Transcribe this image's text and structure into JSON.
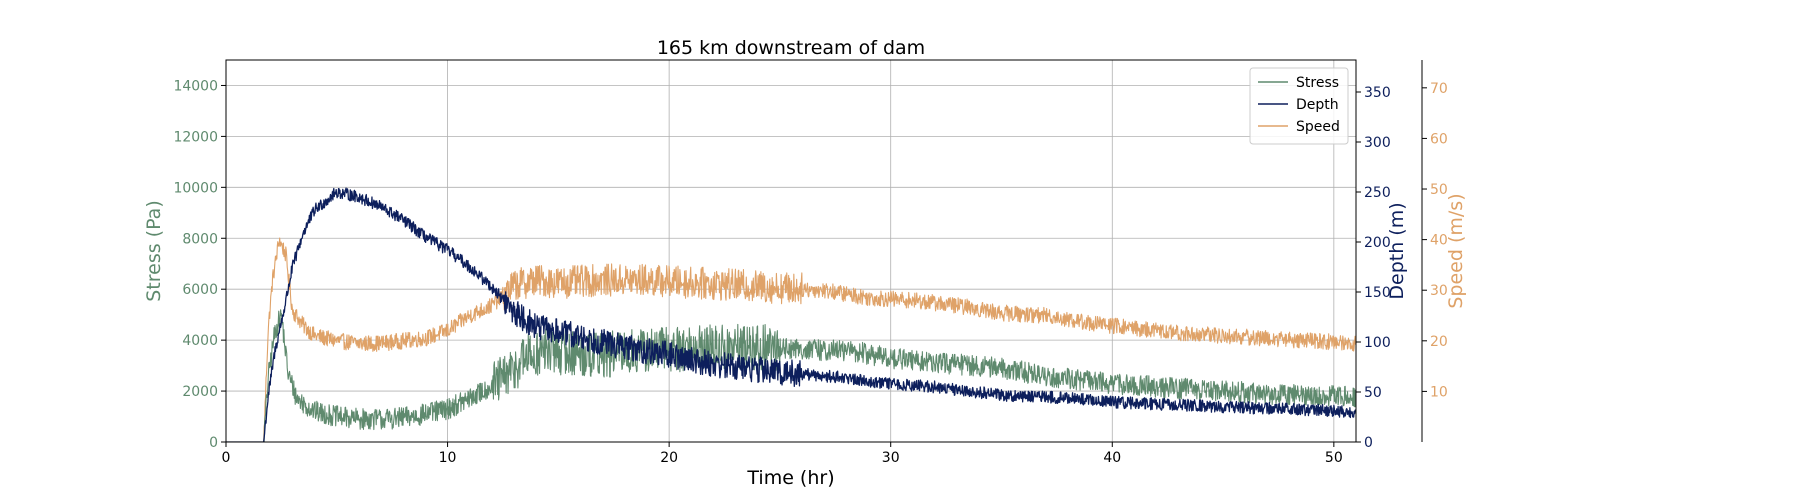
{
  "chart_data": {
    "type": "line",
    "title": "165 km downstream of dam",
    "xlabel": "Time (hr)",
    "xlim": [
      0,
      51
    ],
    "xticks": [
      0,
      10,
      20,
      30,
      40,
      50
    ],
    "grid": true,
    "legend_position": "top-right",
    "axes": [
      {
        "id": "stress",
        "label": "Stress (Pa)",
        "side": "left",
        "color": "#5f8a6e",
        "ylim": [
          0,
          15000
        ],
        "ticks": [
          0,
          2000,
          4000,
          6000,
          8000,
          10000,
          12000,
          14000
        ]
      },
      {
        "id": "depth",
        "label": "Depth (m)",
        "side": "right",
        "color": "#0d1f5c",
        "ylim": [
          0,
          382
        ],
        "ticks": [
          0,
          50,
          100,
          150,
          200,
          250,
          300,
          350
        ]
      },
      {
        "id": "speed",
        "label": "Speed (m/s)",
        "side": "right-offset",
        "color": "#dfa268",
        "ylim": [
          0,
          75.5
        ],
        "ticks": [
          10,
          20,
          30,
          40,
          50,
          60,
          70
        ]
      }
    ],
    "series": [
      {
        "name": "Stress",
        "axis": "stress",
        "color": "#5f8a6e",
        "x": [
          0,
          1.7,
          1.9,
          2.2,
          2.5,
          2.8,
          3.2,
          4,
          5,
          6,
          7,
          8,
          9,
          10,
          11,
          12,
          12.7,
          13.5,
          14.5,
          15.5,
          17,
          19,
          21,
          23,
          25,
          27,
          28,
          30,
          32,
          34,
          35,
          37,
          40,
          43,
          45,
          47,
          49,
          51
        ],
        "y": [
          0,
          0,
          2500,
          4300,
          5000,
          2700,
          1700,
          1200,
          1000,
          900,
          900,
          950,
          1100,
          1300,
          1700,
          2200,
          2600,
          3300,
          3600,
          3500,
          3400,
          3600,
          3700,
          3700,
          3700,
          3600,
          3600,
          3300,
          3100,
          3000,
          2900,
          2600,
          2300,
          2100,
          2000,
          1900,
          1800,
          1800
        ],
        "noise": 420
      },
      {
        "name": "Depth",
        "axis": "depth",
        "color": "#0d1f5c",
        "x": [
          0,
          1.7,
          1.9,
          2.2,
          2.6,
          3.0,
          3.5,
          4,
          5,
          6,
          7,
          8,
          9,
          10,
          11,
          12,
          13,
          14,
          16,
          18,
          20,
          22,
          25,
          28,
          30,
          32,
          35,
          38,
          40,
          43,
          45,
          48,
          51
        ],
        "y": [
          0,
          0,
          45,
          90,
          130,
          175,
          210,
          232,
          250,
          245,
          235,
          222,
          205,
          192,
          175,
          155,
          130,
          115,
          105,
          95,
          87,
          78,
          70,
          64,
          58,
          55,
          47,
          44,
          40,
          37,
          35,
          33,
          30
        ],
        "noise": 6
      },
      {
        "name": "Speed",
        "axis": "speed",
        "color": "#dfa268",
        "x": [
          0,
          1.7,
          1.9,
          2.1,
          2.4,
          2.7,
          3.0,
          3.5,
          4,
          5,
          6,
          7,
          8,
          9,
          10,
          11,
          12,
          13,
          14,
          15,
          17,
          19,
          21,
          23,
          25,
          27,
          29,
          31,
          33,
          35,
          37,
          39,
          41,
          43,
          45,
          47,
          49,
          51
        ],
        "y": [
          0,
          0,
          22,
          32,
          40,
          37,
          26,
          23,
          21,
          20,
          19.5,
          19.5,
          20,
          20.5,
          22,
          25,
          27,
          31,
          32,
          31.5,
          32,
          32,
          31.5,
          31,
          30.5,
          30,
          28.5,
          28,
          27,
          25.5,
          25,
          23.5,
          22.5,
          21.5,
          21,
          20.5,
          20,
          19.5
        ],
        "noise": 1.6
      }
    ]
  }
}
